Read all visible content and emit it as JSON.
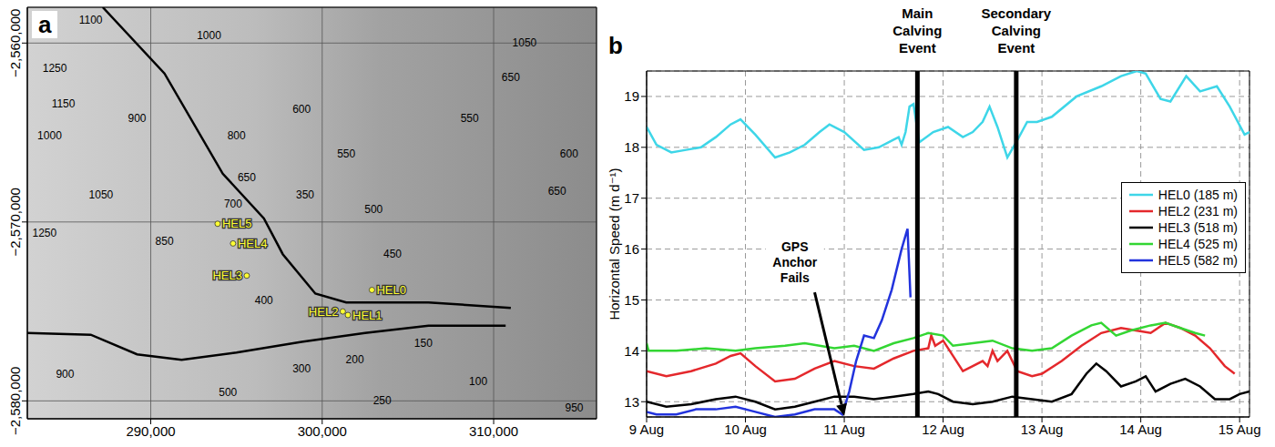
{
  "chart_data": [
    {
      "type": "map",
      "panel": "a",
      "xlim": [
        282800,
        316000
      ],
      "xticks": [
        {
          "value": 290000,
          "label": "290,000"
        },
        {
          "value": 300000,
          "label": "300,000"
        },
        {
          "value": 310000,
          "label": "310,000"
        }
      ],
      "ylim": [
        -2581000,
        -2558000
      ],
      "yticks": [
        {
          "value": -2580000,
          "label": "−2,580,000"
        },
        {
          "value": -2570000,
          "label": "−2,570,000"
        },
        {
          "value": -2560000,
          "label": "−2,560,000"
        }
      ],
      "grid": true,
      "flow_lines": [
        {
          "color": "#000000",
          "x": [
            287200,
            290800,
            294200,
            296600,
            297700,
            299600,
            301400,
            306200,
            311000
          ],
          "y": [
            -2558000,
            -2561700,
            -2567300,
            -2569800,
            -2571800,
            -2574000,
            -2574500,
            -2574500,
            -2574800
          ]
        },
        {
          "color": "#000000",
          "x": [
            282800,
            286500,
            289200,
            291800,
            295000,
            298800,
            302500,
            306200,
            310700
          ],
          "y": [
            -2576200,
            -2576300,
            -2577400,
            -2577700,
            -2577300,
            -2576700,
            -2576200,
            -2575800,
            -2575800
          ]
        }
      ],
      "stations": {
        "color": "#ffff33",
        "points": [
          {
            "name": "HEL5",
            "x": 293900,
            "y": -2570100
          },
          {
            "name": "HEL4",
            "x": 294800,
            "y": -2571200
          },
          {
            "name": "HEL3",
            "x": 295600,
            "y": -2573000
          },
          {
            "name": "HEL2",
            "x": 301200,
            "y": -2575000
          },
          {
            "name": "HEL1",
            "x": 301500,
            "y": -2575200
          },
          {
            "name": "HEL0",
            "x": 302900,
            "y": -2573800
          }
        ]
      },
      "contours": {
        "color": "#000000",
        "labels": [
          {
            "x": 286500,
            "y": -2558700,
            "value": 1100
          },
          {
            "x": 293400,
            "y": -2559600,
            "value": 1000
          },
          {
            "x": 284400,
            "y": -2561400,
            "value": 1250
          },
          {
            "x": 284900,
            "y": -2563400,
            "value": 1150
          },
          {
            "x": 284100,
            "y": -2565200,
            "value": 1000
          },
          {
            "x": 289200,
            "y": -2564200,
            "value": 900
          },
          {
            "x": 295000,
            "y": -2565200,
            "value": 800
          },
          {
            "x": 295600,
            "y": -2567500,
            "value": 650
          },
          {
            "x": 294800,
            "y": -2569000,
            "value": 700
          },
          {
            "x": 287100,
            "y": -2568500,
            "value": 1050
          },
          {
            "x": 283800,
            "y": -2570600,
            "value": 1250
          },
          {
            "x": 290800,
            "y": -2571100,
            "value": 850
          },
          {
            "x": 296600,
            "y": -2574400,
            "value": 400
          },
          {
            "x": 299000,
            "y": -2568500,
            "value": 350
          },
          {
            "x": 298800,
            "y": -2563700,
            "value": 600
          },
          {
            "x": 301400,
            "y": -2566200,
            "value": 550
          },
          {
            "x": 303000,
            "y": -2569300,
            "value": 500
          },
          {
            "x": 304100,
            "y": -2571800,
            "value": 450
          },
          {
            "x": 298800,
            "y": -2578200,
            "value": 300
          },
          {
            "x": 301900,
            "y": -2577700,
            "value": 200
          },
          {
            "x": 305900,
            "y": -2576800,
            "value": 150
          },
          {
            "x": 303500,
            "y": -2580000,
            "value": 250
          },
          {
            "x": 309100,
            "y": -2578900,
            "value": 100
          },
          {
            "x": 294500,
            "y": -2579500,
            "value": 500
          },
          {
            "x": 285000,
            "y": -2578500,
            "value": 900
          },
          {
            "x": 311800,
            "y": -2560000,
            "value": 1050
          },
          {
            "x": 311000,
            "y": -2561900,
            "value": 650
          },
          {
            "x": 308600,
            "y": -2564200,
            "value": 550
          },
          {
            "x": 314400,
            "y": -2566200,
            "value": 600
          },
          {
            "x": 313700,
            "y": -2568300,
            "value": 650
          },
          {
            "x": 314700,
            "y": -2580400,
            "value": 950
          }
        ]
      }
    },
    {
      "type": "line",
      "panel": "b",
      "y_label": "Horizontal Speed (m d⁻¹)",
      "xlim": [
        9,
        15.1
      ],
      "xticks": [
        {
          "value": 9,
          "label": "9 Aug"
        },
        {
          "value": 10,
          "label": "10 Aug"
        },
        {
          "value": 11,
          "label": "11 Aug"
        },
        {
          "value": 12,
          "label": "12 Aug"
        },
        {
          "value": 13,
          "label": "13 Aug"
        },
        {
          "value": 14,
          "label": "14 Aug"
        },
        {
          "value": 15,
          "label": "15 Aug"
        }
      ],
      "ylim": [
        12.7,
        19.5
      ],
      "yticks": [
        13,
        14,
        15,
        16,
        17,
        18,
        19
      ],
      "grid": true,
      "legend": "right",
      "series": [
        {
          "name": "HEL0 (185 m)",
          "color": "#3ed6e8",
          "x": [
            9.0,
            9.1,
            9.25,
            9.4,
            9.55,
            9.7,
            9.85,
            9.95,
            10.1,
            10.3,
            10.45,
            10.6,
            10.75,
            10.85,
            11.0,
            11.2,
            11.35,
            11.5,
            11.55,
            11.58,
            11.62,
            11.66,
            11.7,
            11.76,
            11.9,
            12.05,
            12.2,
            12.3,
            12.4,
            12.47,
            12.55,
            12.65,
            12.74,
            12.85,
            12.95,
            13.1,
            13.35,
            13.6,
            13.8,
            13.96,
            14.05,
            14.2,
            14.3,
            14.46,
            14.6,
            14.77,
            14.9,
            15.05,
            15.1
          ],
          "values": [
            18.4,
            18.05,
            17.9,
            17.95,
            18.0,
            18.2,
            18.45,
            18.55,
            18.25,
            17.8,
            17.9,
            18.05,
            18.3,
            18.45,
            18.3,
            17.95,
            18.0,
            18.15,
            18.2,
            18.05,
            18.3,
            18.8,
            18.85,
            18.1,
            18.3,
            18.4,
            18.2,
            18.3,
            18.5,
            18.8,
            18.4,
            17.8,
            18.1,
            18.5,
            18.5,
            18.6,
            19.0,
            19.2,
            19.4,
            19.5,
            19.45,
            18.95,
            18.9,
            19.4,
            19.1,
            19.2,
            18.8,
            18.25,
            18.3
          ]
        },
        {
          "name": "HEL2 (231 m)",
          "color": "#e4282c",
          "x": [
            9.0,
            9.2,
            9.45,
            9.7,
            9.85,
            9.95,
            10.1,
            10.3,
            10.5,
            10.7,
            10.9,
            11.1,
            11.3,
            11.5,
            11.7,
            11.85,
            11.88,
            11.92,
            12.0,
            12.1,
            12.2,
            12.3,
            12.4,
            12.45,
            12.5,
            12.55,
            12.65,
            12.75,
            12.9,
            13.0,
            13.2,
            13.4,
            13.6,
            13.8,
            13.95,
            14.1,
            14.25,
            14.4,
            14.55,
            14.7,
            14.85,
            14.95
          ],
          "values": [
            13.6,
            13.5,
            13.6,
            13.75,
            13.9,
            13.95,
            13.7,
            13.4,
            13.45,
            13.65,
            13.8,
            13.7,
            13.65,
            13.85,
            14.0,
            14.05,
            14.3,
            14.1,
            14.2,
            13.9,
            13.6,
            13.7,
            13.8,
            13.7,
            14.0,
            13.8,
            14.0,
            13.6,
            13.5,
            13.55,
            13.8,
            14.1,
            14.35,
            14.45,
            14.4,
            14.35,
            14.55,
            14.45,
            14.3,
            14.05,
            13.7,
            13.55
          ]
        },
        {
          "name": "HEL3 (518 m)",
          "color": "#000000",
          "x": [
            9.0,
            9.2,
            9.45,
            9.7,
            9.9,
            10.1,
            10.3,
            10.5,
            10.7,
            10.9,
            11.1,
            11.3,
            11.5,
            11.7,
            11.85,
            11.95,
            12.1,
            12.3,
            12.5,
            12.7,
            12.9,
            13.1,
            13.3,
            13.45,
            13.55,
            13.65,
            13.8,
            13.95,
            14.05,
            14.15,
            14.3,
            14.45,
            14.6,
            14.75,
            14.9,
            15.0,
            15.1
          ],
          "values": [
            13.0,
            12.9,
            12.95,
            13.05,
            13.1,
            13.0,
            12.85,
            12.9,
            13.0,
            13.1,
            13.1,
            13.05,
            13.1,
            13.15,
            13.2,
            13.15,
            13.0,
            12.95,
            13.0,
            13.1,
            13.05,
            13.0,
            13.15,
            13.55,
            13.75,
            13.6,
            13.3,
            13.4,
            13.5,
            13.2,
            13.35,
            13.45,
            13.3,
            13.05,
            13.05,
            13.15,
            13.2
          ]
        },
        {
          "name": "HEL4 (525 m)",
          "color": "#33d633",
          "x": [
            9.0,
            9.02,
            9.3,
            9.6,
            9.9,
            10.1,
            10.4,
            10.6,
            10.9,
            11.1,
            11.3,
            11.5,
            11.7,
            11.85,
            12.0,
            12.1,
            12.3,
            12.5,
            12.7,
            12.9,
            13.1,
            13.3,
            13.5,
            13.6,
            13.75,
            13.9,
            14.1,
            14.25,
            14.4,
            14.55,
            14.65
          ],
          "values": [
            14.15,
            14.0,
            14.0,
            14.05,
            14.0,
            14.05,
            14.1,
            14.15,
            14.05,
            14.1,
            14.0,
            14.15,
            14.25,
            14.35,
            14.3,
            14.1,
            14.15,
            14.2,
            14.05,
            14.0,
            14.05,
            14.3,
            14.5,
            14.55,
            14.3,
            14.4,
            14.5,
            14.55,
            14.45,
            14.35,
            14.3
          ]
        },
        {
          "name": "HEL5 (582 m)",
          "color": "#2233dd",
          "x": [
            9.0,
            9.1,
            9.3,
            9.5,
            9.7,
            9.9,
            10.1,
            10.3,
            10.5,
            10.7,
            10.9,
            10.98,
            11.05,
            11.12,
            11.2,
            11.3,
            11.38,
            11.48,
            11.58,
            11.64,
            11.67
          ],
          "values": [
            12.8,
            12.75,
            12.75,
            12.85,
            12.85,
            12.9,
            12.8,
            12.7,
            12.75,
            12.85,
            12.85,
            12.75,
            13.2,
            13.8,
            14.3,
            14.25,
            14.6,
            15.2,
            16.0,
            16.4,
            15.05
          ]
        }
      ],
      "events": [
        {
          "x": 11.74,
          "label": "Main Calving Event"
        },
        {
          "x": 12.74,
          "label": "Secondary Calving Event"
        }
      ],
      "annotations": [
        {
          "text": "GPS Anchor Fails",
          "x": 10.5,
          "y": 15.75,
          "arrow_from": [
            10.7,
            15.15
          ],
          "arrow_to": [
            11.0,
            12.72
          ]
        }
      ]
    }
  ]
}
